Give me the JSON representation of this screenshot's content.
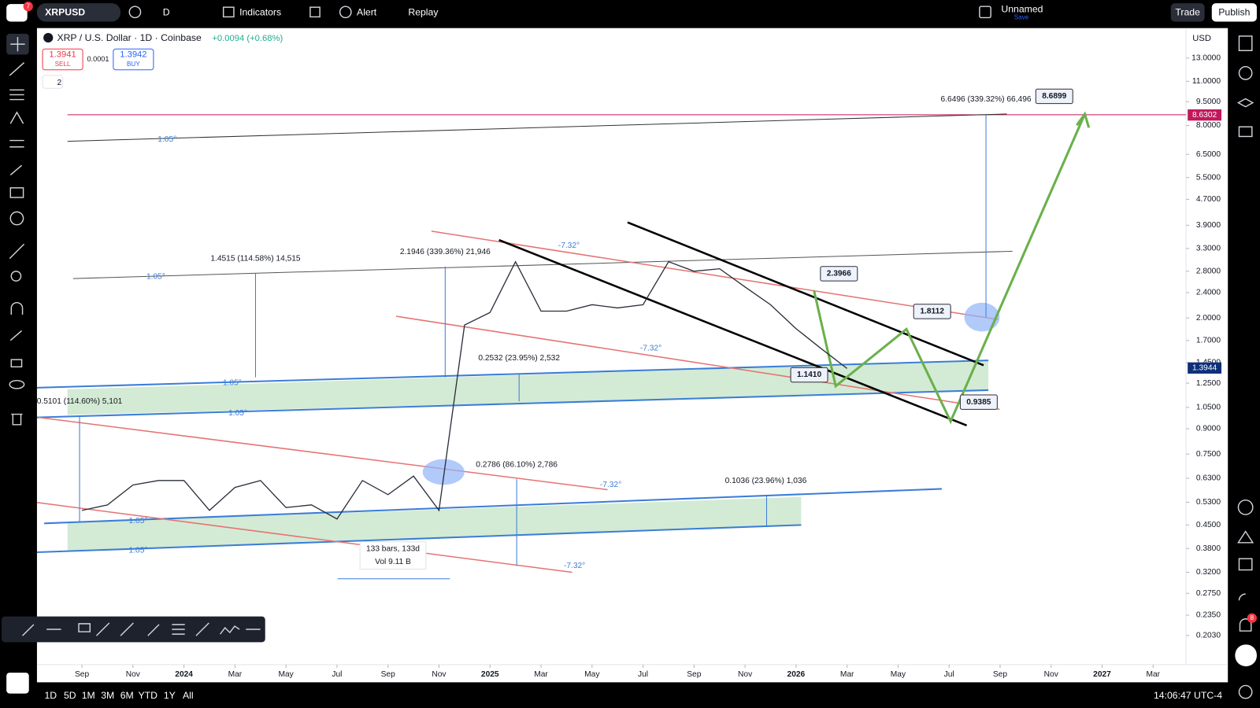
{
  "toolbar": {
    "symbol": "XRPUSD",
    "notifications": "7",
    "interval": "D",
    "indicators": "Indicators",
    "alert": "Alert",
    "replay": "Replay",
    "layout_name": "Unnamed",
    "save": "Save",
    "trade": "Trade",
    "publish": "Publish"
  },
  "header": {
    "title": "XRP / U.S. Dollar · 1D · Coinbase",
    "change": "+0.0094 (+0.68%)",
    "sell_price": "1.3941",
    "sell": "SELL",
    "spread": "0.0001",
    "buy_price": "1.3942",
    "buy": "BUY",
    "indicator_count": "2"
  },
  "chart_data": {
    "type": "line",
    "currency": "USD",
    "log_scale": true,
    "color": "#2a2e39",
    "categories": [
      "Sep",
      null,
      "Nov",
      null,
      "2024",
      null,
      "Mar",
      null,
      "May",
      null,
      "Jul",
      null,
      "Sep",
      null,
      "Nov",
      null,
      "2025",
      null,
      "Mar",
      null,
      "May",
      null,
      "Jul",
      null,
      "Sep",
      null,
      "Nov",
      null,
      "2026",
      null,
      "Mar",
      null,
      "May",
      null,
      "Jul",
      null,
      "Sep",
      null,
      "Nov",
      null,
      "2027",
      null,
      "Mar"
    ],
    "values": [
      0.5,
      0.52,
      0.6,
      0.62,
      0.62,
      0.5,
      0.59,
      0.62,
      0.51,
      0.52,
      0.47,
      0.62,
      0.56,
      0.64,
      0.5,
      1.9,
      2.08,
      3.0,
      2.1,
      2.1,
      2.2,
      2.15,
      2.2,
      3.0,
      2.8,
      2.85,
      2.5,
      2.2,
      1.85,
      1.6,
      1.39,
      null,
      null,
      null,
      null,
      null,
      null,
      null,
      null,
      null,
      null,
      null,
      null
    ],
    "ylim": [
      0.1645,
      16.14
    ],
    "yticks": [
      {
        "value": 13,
        "label": "13.0000"
      },
      {
        "value": 11,
        "label": "11.0000"
      },
      {
        "value": 9.5,
        "label": "9.5000"
      },
      {
        "value": 8,
        "label": "8.0000"
      },
      {
        "value": 6.5,
        "label": "6.5000"
      },
      {
        "value": 5.5,
        "label": "5.5000"
      },
      {
        "value": 4.7,
        "label": "4.7000"
      },
      {
        "value": 3.9,
        "label": "3.9000"
      },
      {
        "value": 3.3,
        "label": "3.3000"
      },
      {
        "value": 2.8,
        "label": "2.8000"
      },
      {
        "value": 2.4,
        "label": "2.4000"
      },
      {
        "value": 2,
        "label": "2.0000"
      },
      {
        "value": 1.7,
        "label": "1.7000"
      },
      {
        "value": 1.45,
        "label": "1.4500"
      },
      {
        "value": 1.25,
        "label": "1.2500"
      },
      {
        "value": 1.05,
        "label": "1.0500"
      },
      {
        "value": 0.9,
        "label": "0.9000"
      },
      {
        "value": 0.75,
        "label": "0.7500"
      },
      {
        "value": 0.63,
        "label": "0.6300"
      },
      {
        "value": 0.53,
        "label": "0.5300"
      },
      {
        "value": 0.45,
        "label": "0.4500"
      },
      {
        "value": 0.38,
        "label": "0.3800"
      },
      {
        "value": 0.32,
        "label": "0.3200"
      },
      {
        "value": 0.275,
        "label": "0.2750"
      },
      {
        "value": 0.235,
        "label": "0.2350"
      },
      {
        "value": 0.203,
        "label": "0.2030"
      }
    ],
    "price_labels": [
      8.6302,
      1.3944
    ],
    "annotations": [
      "1.4515 (114.58%) 14,515",
      "2.1946 (339.36%) 21,946",
      "0.2532 (23.95%) 2,532",
      "0.5101 (114.60%) 5,101",
      "0.2786 (86.10%) 2,786",
      "0.1036 (23.96%) 1,036",
      "6.6496 (339.32%) 66,496",
      "133 bars, 133d",
      "Vol 9.11 B"
    ],
    "angle_labels": [
      "1.05°",
      "1.05°",
      "1.05°",
      "1.05°",
      "1.05°",
      "1.05°",
      "-7.32°",
      "-7.32°",
      "-7.32°",
      "-7.32°"
    ],
    "projection_labels": [
      "2.3966",
      "1.8112",
      "1.1410",
      "0.9385",
      "8.6899"
    ]
  },
  "bottom_bar": {
    "ranges": [
      "1D",
      "5D",
      "1M",
      "3M",
      "6M",
      "YTD",
      "1Y",
      "All"
    ],
    "clock": "14:06:47 UTC-4"
  },
  "side_badge": "8"
}
